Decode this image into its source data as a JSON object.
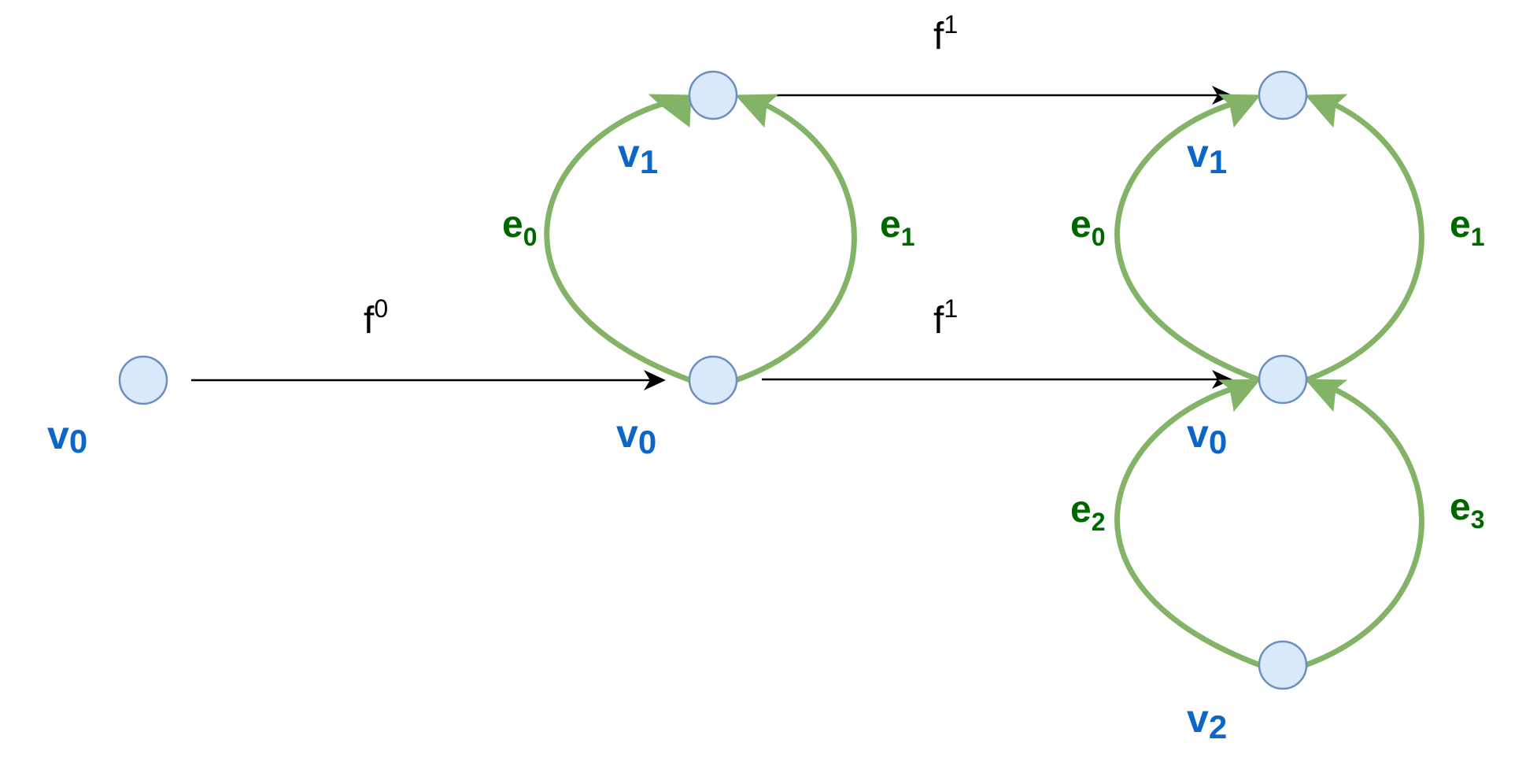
{
  "colors": {
    "node_fill": "#dae8fc",
    "node_stroke": "#6c8ebf",
    "edge_green": "#82b366",
    "label_vertex": "#0b66c8",
    "label_edge": "#006600",
    "arrow_black": "#000000"
  },
  "vertex_labels": {
    "left_v0": {
      "base": "v",
      "sub": "0"
    },
    "mid_v1": {
      "base": "v",
      "sub": "1"
    },
    "mid_v0": {
      "base": "v",
      "sub": "0"
    },
    "right_v1": {
      "base": "v",
      "sub": "1"
    },
    "right_v0": {
      "base": "v",
      "sub": "0"
    },
    "right_v2": {
      "base": "v",
      "sub": "2"
    }
  },
  "edge_labels": {
    "mid_e0": {
      "base": "e",
      "sub": "0"
    },
    "mid_e1": {
      "base": "e",
      "sub": "1"
    },
    "right_e0": {
      "base": "e",
      "sub": "0"
    },
    "right_e1": {
      "base": "e",
      "sub": "1"
    },
    "right_e2": {
      "base": "e",
      "sub": "2"
    },
    "right_e3": {
      "base": "e",
      "sub": "3"
    }
  },
  "map_labels": {
    "f0": {
      "base": "f",
      "sup": "0"
    },
    "f1_top": {
      "base": "f",
      "sup": "1"
    },
    "f1_bottom": {
      "base": "f",
      "sup": "1"
    }
  }
}
